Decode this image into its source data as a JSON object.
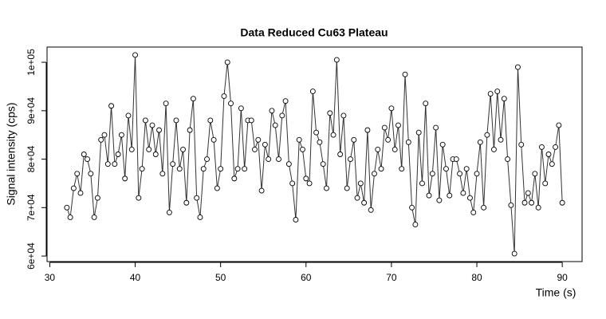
{
  "chart_data": {
    "type": "line",
    "title": "Data Reduced Cu63 Plateau",
    "x_label": "Time (s)",
    "y_label": "Signal intensity (cps)",
    "color": "#333333",
    "x": [
      32,
      32.4,
      32.8,
      33.2,
      33.6,
      34,
      34.4,
      34.8,
      35.2,
      35.6,
      36,
      36.4,
      36.8,
      37.2,
      37.6,
      38,
      38.4,
      38.8,
      39.2,
      39.6,
      40,
      40.4,
      40.8,
      41.2,
      41.6,
      42,
      42.4,
      42.8,
      43.2,
      43.6,
      44,
      44.4,
      44.8,
      45.2,
      45.6,
      46,
      46.4,
      46.8,
      47.2,
      47.6,
      48,
      48.4,
      48.8,
      49.2,
      49.6,
      50,
      50.4,
      50.8,
      51.2,
      51.6,
      52,
      52.4,
      52.8,
      53.2,
      53.6,
      54,
      54.4,
      54.8,
      55.2,
      55.6,
      56,
      56.4,
      56.8,
      57.2,
      57.6,
      58,
      58.4,
      58.8,
      59.2,
      59.6,
      60,
      60.4,
      60.8,
      61.2,
      61.6,
      62,
      62.4,
      62.8,
      63.2,
      63.6,
      64,
      64.4,
      64.8,
      65.2,
      65.6,
      66,
      66.4,
      66.8,
      67.2,
      67.6,
      68,
      68.4,
      68.8,
      69.2,
      69.6,
      70,
      70.4,
      70.8,
      71.2,
      71.6,
      72,
      72.4,
      72.8,
      73.2,
      73.6,
      74,
      74.4,
      74.8,
      75.2,
      75.6,
      76,
      76.4,
      76.8,
      77.2,
      77.6,
      78,
      78.4,
      78.8,
      79.2,
      79.6,
      80,
      80.4,
      80.8,
      81.2,
      81.6,
      82,
      82.4,
      82.8,
      83.2,
      83.6,
      84,
      84.4,
      84.8,
      85.2,
      85.6,
      86,
      86.4,
      86.8,
      87.2,
      87.6,
      88,
      88.4,
      88.8,
      89.2,
      89.6,
      90
    ],
    "values": [
      70000,
      68000,
      74000,
      77000,
      73000,
      81000,
      80000,
      77000,
      68000,
      72000,
      84000,
      85000,
      79000,
      91000,
      79000,
      81000,
      85000,
      76000,
      89000,
      82000,
      101500,
      72000,
      78000,
      88000,
      82000,
      87000,
      81000,
      86000,
      77000,
      91500,
      69000,
      79000,
      88000,
      78000,
      82000,
      71000,
      86000,
      92500,
      72000,
      68000,
      78000,
      80000,
      88000,
      84000,
      74000,
      78000,
      93000,
      100000,
      91500,
      76000,
      78000,
      90500,
      78000,
      88000,
      88000,
      82000,
      84000,
      73500,
      83000,
      80000,
      90000,
      87000,
      80000,
      89000,
      92000,
      79000,
      75000,
      67500,
      84000,
      82000,
      76000,
      75000,
      94000,
      85500,
      83500,
      79000,
      74000,
      89500,
      85000,
      100500,
      81000,
      89000,
      74000,
      80000,
      84000,
      72000,
      75000,
      71000,
      86000,
      69500,
      77000,
      82000,
      78000,
      86500,
      84000,
      90500,
      82000,
      87000,
      78000,
      97500,
      83500,
      70000,
      66500,
      85500,
      75000,
      91500,
      72500,
      77000,
      86500,
      71500,
      83000,
      78000,
      72500,
      80000,
      80000,
      77000,
      73000,
      78000,
      72000,
      69000,
      77000,
      83500,
      70000,
      85000,
      93500,
      82000,
      94000,
      84000,
      92500,
      80000,
      70500,
      60500,
      99000,
      83000,
      71000,
      73000,
      71000,
      77000,
      70000,
      82500,
      75000,
      81000,
      79000,
      82500,
      87000,
      71000
    ],
    "xlim": [
      29.68,
      92.32
    ],
    "xticks": [
      30,
      40,
      50,
      60,
      70,
      80,
      90
    ],
    "ylim": [
      58860,
      103140
    ],
    "yticks": [
      {
        "value": 60000,
        "label": "6e+04"
      },
      {
        "value": 70000,
        "label": "7e+04"
      },
      {
        "value": 80000,
        "label": "8e+04"
      },
      {
        "value": 90000,
        "label": "9e+04"
      },
      {
        "value": 100000,
        "label": "1e+05"
      }
    ]
  }
}
